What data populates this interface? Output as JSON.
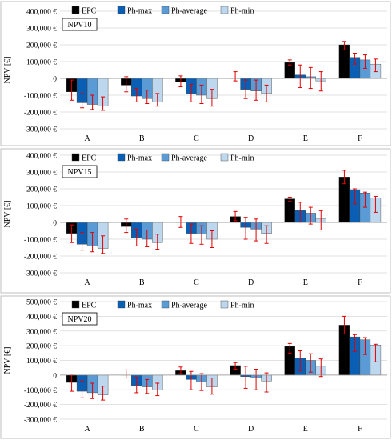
{
  "legend": [
    {
      "name": "EPC",
      "color": "#000000"
    },
    {
      "name": "Ph-max",
      "color": "#0a5fb4"
    },
    {
      "name": "Ph-average",
      "color": "#5b9bd5"
    },
    {
      "name": "Ph-min",
      "color": "#bdd7ee"
    }
  ],
  "error_color": "#e00000",
  "chart_data": [
    {
      "type": "bar",
      "title": "NPV10",
      "ylabel": "NPV [€]",
      "ylim": [
        -300000,
        400000
      ],
      "yticks": [
        -300000,
        -200000,
        -100000,
        0,
        100000,
        200000,
        300000,
        400000
      ],
      "ytick_labels": [
        "-300,000 €",
        "-200,000 €",
        "-100,000 €",
        "0",
        "100,000 €",
        "200,000 €",
        "300,000 €",
        "400,000 €"
      ],
      "categories": [
        "A",
        "B",
        "C",
        "D",
        "E",
        "F"
      ],
      "series": [
        {
          "name": "EPC",
          "values": [
            -80000,
            -40000,
            -20000,
            0,
            95000,
            200000
          ],
          "err_low": [
            -130000,
            -80000,
            -50000,
            -15000,
            80000,
            170000
          ],
          "err_high": [
            -10000,
            10000,
            15000,
            40000,
            110000,
            220000
          ]
        },
        {
          "name": "Ph-max",
          "values": [
            -145000,
            -105000,
            -90000,
            -65000,
            20000,
            125000
          ],
          "err_low": [
            -175000,
            -140000,
            -140000,
            -120000,
            -55000,
            85000
          ],
          "err_high": [
            -90000,
            -60000,
            -35000,
            -10000,
            80000,
            150000
          ]
        },
        {
          "name": "Ph-average",
          "values": [
            -155000,
            -120000,
            -100000,
            -75000,
            10000,
            110000
          ],
          "err_low": [
            -185000,
            -150000,
            -150000,
            -130000,
            -60000,
            60000
          ],
          "err_high": [
            -100000,
            -70000,
            -40000,
            -10000,
            65000,
            140000
          ]
        },
        {
          "name": "Ph-min",
          "values": [
            -165000,
            -140000,
            -120000,
            -90000,
            -15000,
            85000
          ],
          "err_low": [
            -190000,
            -165000,
            -165000,
            -140000,
            -75000,
            40000
          ],
          "err_high": [
            -110000,
            -90000,
            -65000,
            -40000,
            40000,
            115000
          ]
        }
      ]
    },
    {
      "type": "bar",
      "title": "NPV15",
      "ylabel": "NPV [€]",
      "ylim": [
        -300000,
        400000
      ],
      "yticks": [
        -300000,
        -200000,
        -100000,
        0,
        100000,
        200000,
        300000,
        400000
      ],
      "ytick_labels": [
        "-300,000 €",
        "-200,000 €",
        "-100,000 €",
        "0",
        "100,000 €",
        "200,000 €",
        "300,000 €",
        "400,000 €"
      ],
      "categories": [
        "A",
        "B",
        "C",
        "D",
        "E",
        "F"
      ],
      "series": [
        {
          "name": "EPC",
          "values": [
            -65000,
            -25000,
            0,
            35000,
            140000,
            270000
          ],
          "err_low": [
            -120000,
            -60000,
            -30000,
            10000,
            125000,
            230000
          ],
          "err_high": [
            -15000,
            20000,
            35000,
            65000,
            150000,
            310000
          ]
        },
        {
          "name": "Ph-max",
          "values": [
            -130000,
            -90000,
            -65000,
            -30000,
            70000,
            195000
          ],
          "err_low": [
            -165000,
            -140000,
            -125000,
            -100000,
            0,
            110000
          ],
          "err_high": [
            -60000,
            -40000,
            -10000,
            30000,
            120000,
            200000
          ]
        },
        {
          "name": "Ph-average",
          "values": [
            -140000,
            -100000,
            -70000,
            -40000,
            55000,
            175000
          ],
          "err_low": [
            -175000,
            -145000,
            -130000,
            -110000,
            -10000,
            90000
          ],
          "err_high": [
            -60000,
            -45000,
            -20000,
            20000,
            90000,
            180000
          ]
        },
        {
          "name": "Ph-min",
          "values": [
            -155000,
            -120000,
            -100000,
            -65000,
            20000,
            145000
          ],
          "err_low": [
            -185000,
            -160000,
            -150000,
            -125000,
            -45000,
            60000
          ],
          "err_high": [
            -80000,
            -70000,
            -50000,
            -20000,
            70000,
            155000
          ]
        }
      ]
    },
    {
      "type": "bar",
      "title": "NPV20",
      "ylabel": "NPV [€]",
      "ylim": [
        -300000,
        500000
      ],
      "yticks": [
        -300000,
        -200000,
        -100000,
        0,
        100000,
        200000,
        300000,
        400000,
        500000
      ],
      "ytick_labels": [
        "-300,000 €",
        "-200,000 €",
        "-100,000 €",
        "0",
        "100,000 €",
        "200,000 €",
        "300,000 €",
        "400,000 €",
        "500,000 €"
      ],
      "categories": [
        "A",
        "B",
        "C",
        "D",
        "E",
        "F"
      ],
      "series": [
        {
          "name": "EPC",
          "values": [
            -50000,
            0,
            30000,
            65000,
            195000,
            340000
          ],
          "err_low": [
            -110000,
            -20000,
            10000,
            40000,
            150000,
            280000
          ],
          "err_high": [
            0,
            35000,
            55000,
            85000,
            215000,
            400000
          ]
        },
        {
          "name": "Ph-max",
          "values": [
            -110000,
            -70000,
            -30000,
            -10000,
            115000,
            260000
          ],
          "err_low": [
            -155000,
            -120000,
            -100000,
            -90000,
            30000,
            160000
          ],
          "err_high": [
            -40000,
            -15000,
            25000,
            60000,
            165000,
            275000
          ]
        },
        {
          "name": "Ph-average",
          "values": [
            -120000,
            -80000,
            -45000,
            -20000,
            100000,
            240000
          ],
          "err_low": [
            -160000,
            -125000,
            -105000,
            -100000,
            20000,
            140000
          ],
          "err_high": [
            -55000,
            -30000,
            10000,
            40000,
            145000,
            255000
          ]
        },
        {
          "name": "Ph-min",
          "values": [
            -135000,
            -100000,
            -80000,
            -40000,
            60000,
            205000
          ],
          "err_low": [
            -170000,
            -140000,
            -130000,
            -115000,
            -10000,
            90000
          ],
          "err_high": [
            -75000,
            -55000,
            -20000,
            15000,
            110000,
            210000
          ]
        }
      ]
    }
  ]
}
